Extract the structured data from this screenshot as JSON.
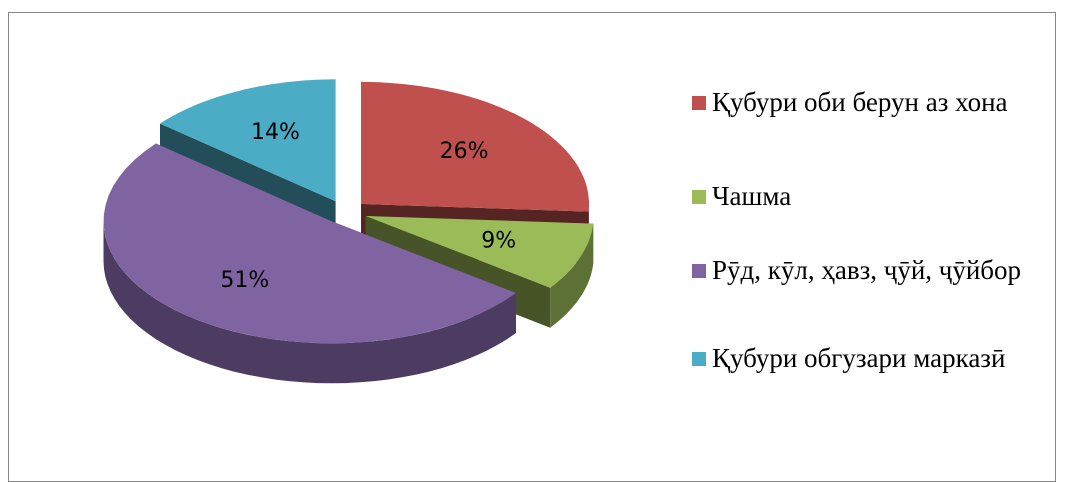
{
  "chart_data": {
    "type": "pie",
    "categories": [
      "Қубури оби берун аз хона",
      "Чашма",
      "Рӯд, кӯл, ҳавз, ҷӯй, ҷӯйбор",
      "Қубури обгузари марказӣ"
    ],
    "values": [
      26,
      9,
      51,
      14
    ],
    "value_labels": [
      "26%",
      "9%",
      "51%",
      "14%"
    ],
    "colors": [
      "#c0504d",
      "#9bbb59",
      "#8064a2",
      "#4bacc6"
    ],
    "legend": "right"
  }
}
